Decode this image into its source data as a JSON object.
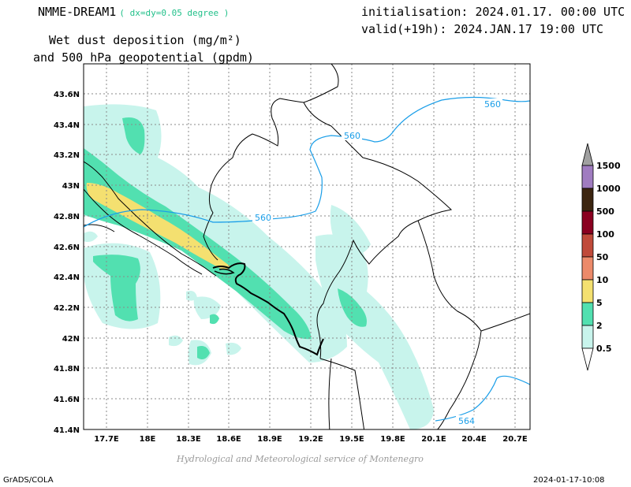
{
  "header": {
    "model": "NMME-DREAM1",
    "resolution": "( dx=dy=0.05 degree )",
    "init": "initialisation: 2024.01.17. 00:00 UTC",
    "valid": "valid(+19h): 2024.JAN.17 19:00 UTC",
    "param_line1": "Wet dust deposition (mg/m²)",
    "param_line2": "and 500 hPa geopotential (gpdm)"
  },
  "map": {
    "lat_labels": [
      "43.6N",
      "43.4N",
      "43.2N",
      "43N",
      "42.8N",
      "42.6N",
      "42.4N",
      "42.2N",
      "42N",
      "41.8N",
      "41.6N",
      "41.4N"
    ],
    "lon_labels": [
      "17.7E",
      "18E",
      "18.3E",
      "18.6E",
      "18.9E",
      "19.2E",
      "19.5E",
      "19.8E",
      "20.1E",
      "20.4E",
      "20.7E"
    ],
    "contour_labels": [
      "560",
      "560",
      "560",
      "564"
    ],
    "contour_color": "#1a9ee8"
  },
  "colorbar": {
    "labels": [
      "1500",
      "1000",
      "500",
      "100",
      "50",
      "10",
      "5",
      "2",
      "0.5"
    ],
    "colors": [
      "#a07cc0",
      "#3c2510",
      "#8a0020",
      "#c04a3a",
      "#ec8a6a",
      "#f4e070",
      "#52e0b0",
      "#c8f4ec"
    ],
    "top_arrow_color": "#a0a0a0"
  },
  "footer": {
    "credit": "Hydrological and Meteorological service of Montenegro",
    "left": "GrADS/COLA",
    "right": "2024-01-17-10:08"
  }
}
